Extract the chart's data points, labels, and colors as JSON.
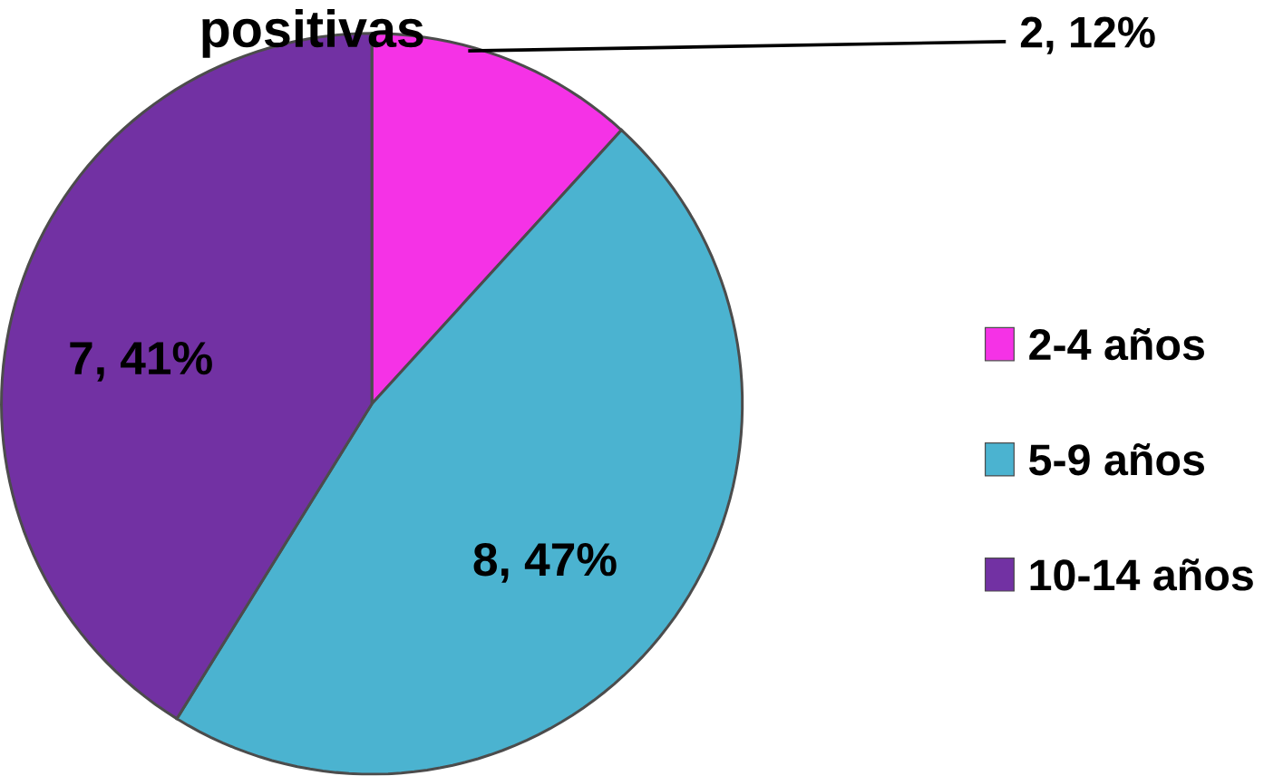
{
  "chart_data": {
    "type": "pie",
    "title": "positivas",
    "categories": [
      "2-4 años",
      "5-9 años",
      "10-14 años"
    ],
    "values": [
      2,
      8,
      7
    ],
    "colors": [
      "#f532e6",
      "#4bb3d0",
      "#7231a3"
    ],
    "value_labels": [
      "2, 12%",
      "8, 47%",
      "7, 41%"
    ],
    "legend": "right"
  }
}
